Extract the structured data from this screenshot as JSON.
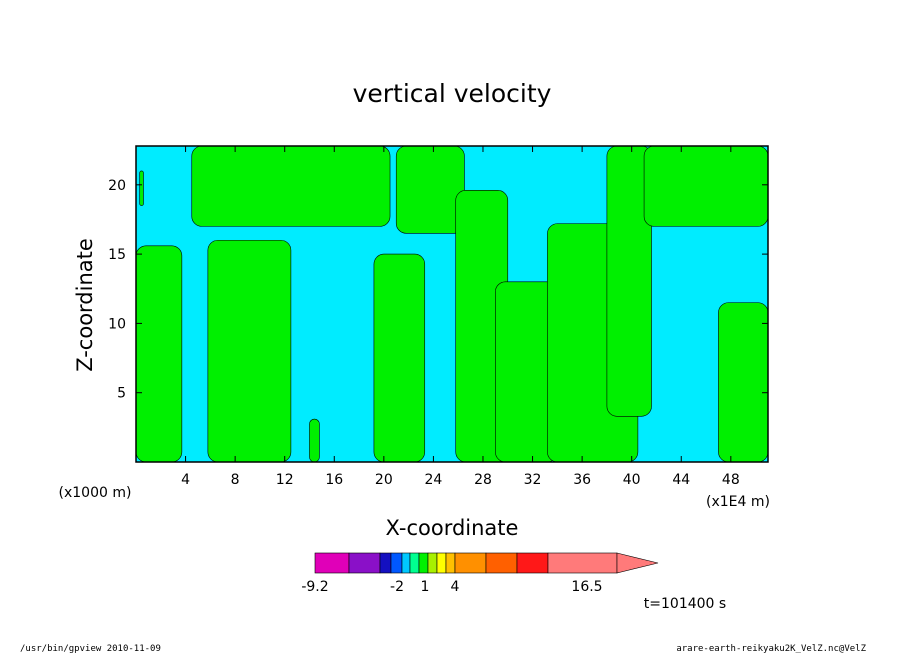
{
  "chart_data": {
    "type": "heatmap",
    "title": "vertical velocity",
    "xlabel": "X-coordinate",
    "ylabel": "Z-coordinate",
    "x_unit_label": "(x1E4 m)",
    "y_unit_label": "(x1000 m)",
    "xlim": [
      0,
      51
    ],
    "ylim": [
      0,
      22.8
    ],
    "x_ticks": [
      "4",
      "8",
      "12",
      "16",
      "20",
      "24",
      "28",
      "32",
      "36",
      "40",
      "44",
      "48"
    ],
    "y_ticks": [
      "5",
      "10",
      "15",
      "20"
    ],
    "colors": {
      "negative": "#00ecff",
      "positive": "#00f000"
    },
    "regions": [
      {
        "sign": "positive",
        "x_range": [
          0.3,
          0.6
        ],
        "z_range": [
          18.5,
          21
        ]
      },
      {
        "sign": "positive",
        "x_range": [
          0,
          3.7
        ],
        "z_range": [
          0,
          15.6
        ]
      },
      {
        "sign": "positive",
        "x_range": [
          4.5,
          20.5
        ],
        "z_range": [
          17,
          22.8
        ]
      },
      {
        "sign": "positive",
        "x_range": [
          5.8,
          12.5
        ],
        "z_range": [
          0,
          16
        ]
      },
      {
        "sign": "positive",
        "x_range": [
          14,
          14.8
        ],
        "z_range": [
          0,
          3.1
        ]
      },
      {
        "sign": "positive",
        "x_range": [
          19.2,
          23.3
        ],
        "z_range": [
          0,
          15
        ]
      },
      {
        "sign": "positive",
        "x_range": [
          21,
          26.5
        ],
        "z_range": [
          16.5,
          22.8
        ]
      },
      {
        "sign": "positive",
        "x_range": [
          25.8,
          30
        ],
        "z_range": [
          0,
          19.6
        ]
      },
      {
        "sign": "positive",
        "x_range": [
          29,
          34
        ],
        "z_range": [
          0,
          13
        ]
      },
      {
        "sign": "positive",
        "x_range": [
          33.2,
          40.5
        ],
        "z_range": [
          0,
          17.2
        ]
      },
      {
        "sign": "positive",
        "x_range": [
          38,
          41.6
        ],
        "z_range": [
          3.3,
          22.8
        ]
      },
      {
        "sign": "positive",
        "x_range": [
          41,
          51
        ],
        "z_range": [
          17,
          22.8
        ]
      },
      {
        "sign": "positive",
        "x_range": [
          47,
          51
        ],
        "z_range": [
          0,
          11.5
        ]
      }
    ],
    "colorbar": {
      "labels": [
        "-9.2",
        "-2",
        "1",
        "4",
        "16.5"
      ],
      "colors": [
        "#e000b8",
        "#8a10c8",
        "#1410c0",
        "#0058ff",
        "#00c8ff",
        "#00ff90",
        "#00f000",
        "#a8f000",
        "#ffff00",
        "#ffc000",
        "#ff9000",
        "#ff6000",
        "#ff1818",
        "#ff7a7a"
      ]
    },
    "time_label": "t=101400 s"
  },
  "footer": {
    "left": "/usr/bin/gpview  2010-11-09",
    "right": "arare-earth-reikyaku2K_VelZ.nc@VelZ"
  }
}
